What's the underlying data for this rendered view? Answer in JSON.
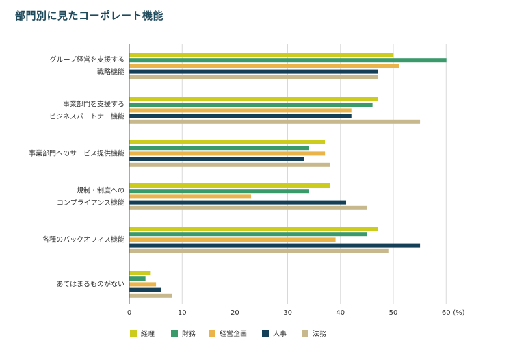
{
  "title": "部門別に見たコーポレート機能",
  "chart_data": {
    "type": "bar",
    "orientation": "horizontal",
    "title": "部門別に見たコーポレート機能",
    "xlabel": "",
    "ylabel": "",
    "unit_label": "(%)",
    "xlim": [
      0,
      60
    ],
    "xticks": [
      0,
      10,
      20,
      30,
      40,
      50,
      60
    ],
    "grid": true,
    "legend_position": "bottom",
    "categories": [
      [
        "グループ経営を支援する",
        "戦略機能"
      ],
      [
        "事業部門を支援する",
        "ビジネスパートナー機能"
      ],
      [
        "事業部門へのサービス提供機能"
      ],
      [
        "規制・制度への",
        "コンプライアンス機能"
      ],
      [
        "各種のバックオフィス機能"
      ],
      [
        "あてはまるものがない"
      ]
    ],
    "series": [
      {
        "name": "経理",
        "color": "#cccc1f",
        "values": [
          50,
          47,
          37,
          38,
          47,
          4
        ]
      },
      {
        "name": "財務",
        "color": "#3a9a6a",
        "values": [
          60,
          46,
          34,
          34,
          45,
          3
        ]
      },
      {
        "name": "経営企画",
        "color": "#eab44a",
        "values": [
          51,
          42,
          37,
          23,
          39,
          5
        ]
      },
      {
        "name": "人事",
        "color": "#143f57",
        "values": [
          47,
          42,
          33,
          41,
          55,
          6
        ]
      },
      {
        "name": "法務",
        "color": "#c8b88e",
        "values": [
          47,
          55,
          38,
          45,
          49,
          8
        ]
      }
    ]
  }
}
